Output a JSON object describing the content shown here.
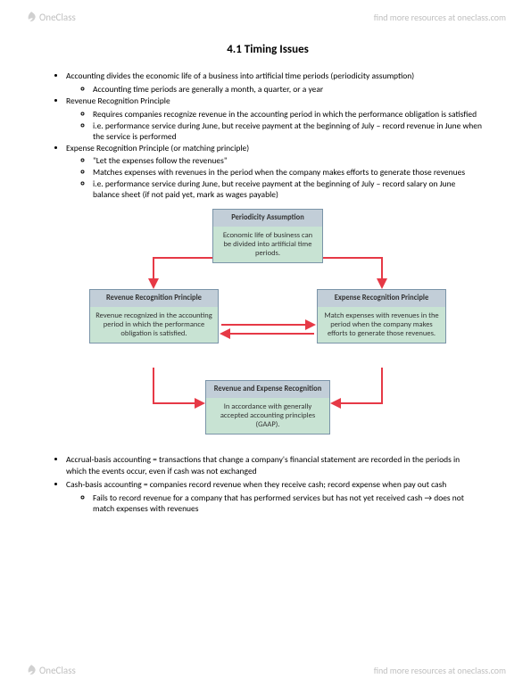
{
  "header": {
    "brand": "OneClass",
    "tagline": "find more resources at oneclass.com"
  },
  "title": "4.1 Timing Issues",
  "bullets": [
    {
      "text": "Accounting divides the economic life of a business into artificial time periods (periodicity assumption)",
      "sub": [
        {
          "text": "Accounting time periods are generally a month, a quarter, or a year"
        }
      ]
    },
    {
      "text": "Revenue Recognition Principle",
      "sub": [
        {
          "text": "Requires companies recognize revenue in the accounting period in which the performance obligation is satisfied"
        },
        {
          "text": "i.e. performance service during June, but receive payment at the beginning of July – record revenue in June when the service is performed"
        }
      ]
    },
    {
      "text": "Expense Recognition Principle (or matching principle)",
      "sub": [
        {
          "text": "\"Let the expenses follow the revenues\""
        },
        {
          "text": "Matches expenses with revenues in the period when the company makes efforts to generate those revenues"
        },
        {
          "text": "i.e. performance service during June, but receive payment at the beginning of July – record salary on June balance sheet (if not paid yet, mark as wages payable)"
        }
      ]
    }
  ],
  "diagram": {
    "top": {
      "title": "Periodicity Assumption",
      "body": "Economic life of business can be divided into artificial time periods."
    },
    "left": {
      "title": "Revenue Recognition Principle",
      "body": "Revenue recognized in the accounting period in which the performance obligation is satisfied."
    },
    "right": {
      "title": "Expense Recognition Principle",
      "body": "Match expenses with revenues in the period when the company makes efforts to generate those revenues."
    },
    "bottom": {
      "title": "Revenue and Expense Recognition",
      "body": "In accordance with generally accepted accounting principles (GAAP)."
    },
    "arrow_color": "#e63946"
  },
  "bottom_bullets": [
    {
      "text": "Accrual-basis accounting = transactions that change a company's financial statement are recorded in the periods in which the events occur, even if cash was not exchanged"
    },
    {
      "text": "Cash-basis accounting = companies record revenue when they receive cash; record expense when pay out cash",
      "sub": [
        {
          "text": "Fails to record revenue for a company that has performed services but has not yet received cash → does not match expenses with revenues"
        }
      ]
    }
  ]
}
